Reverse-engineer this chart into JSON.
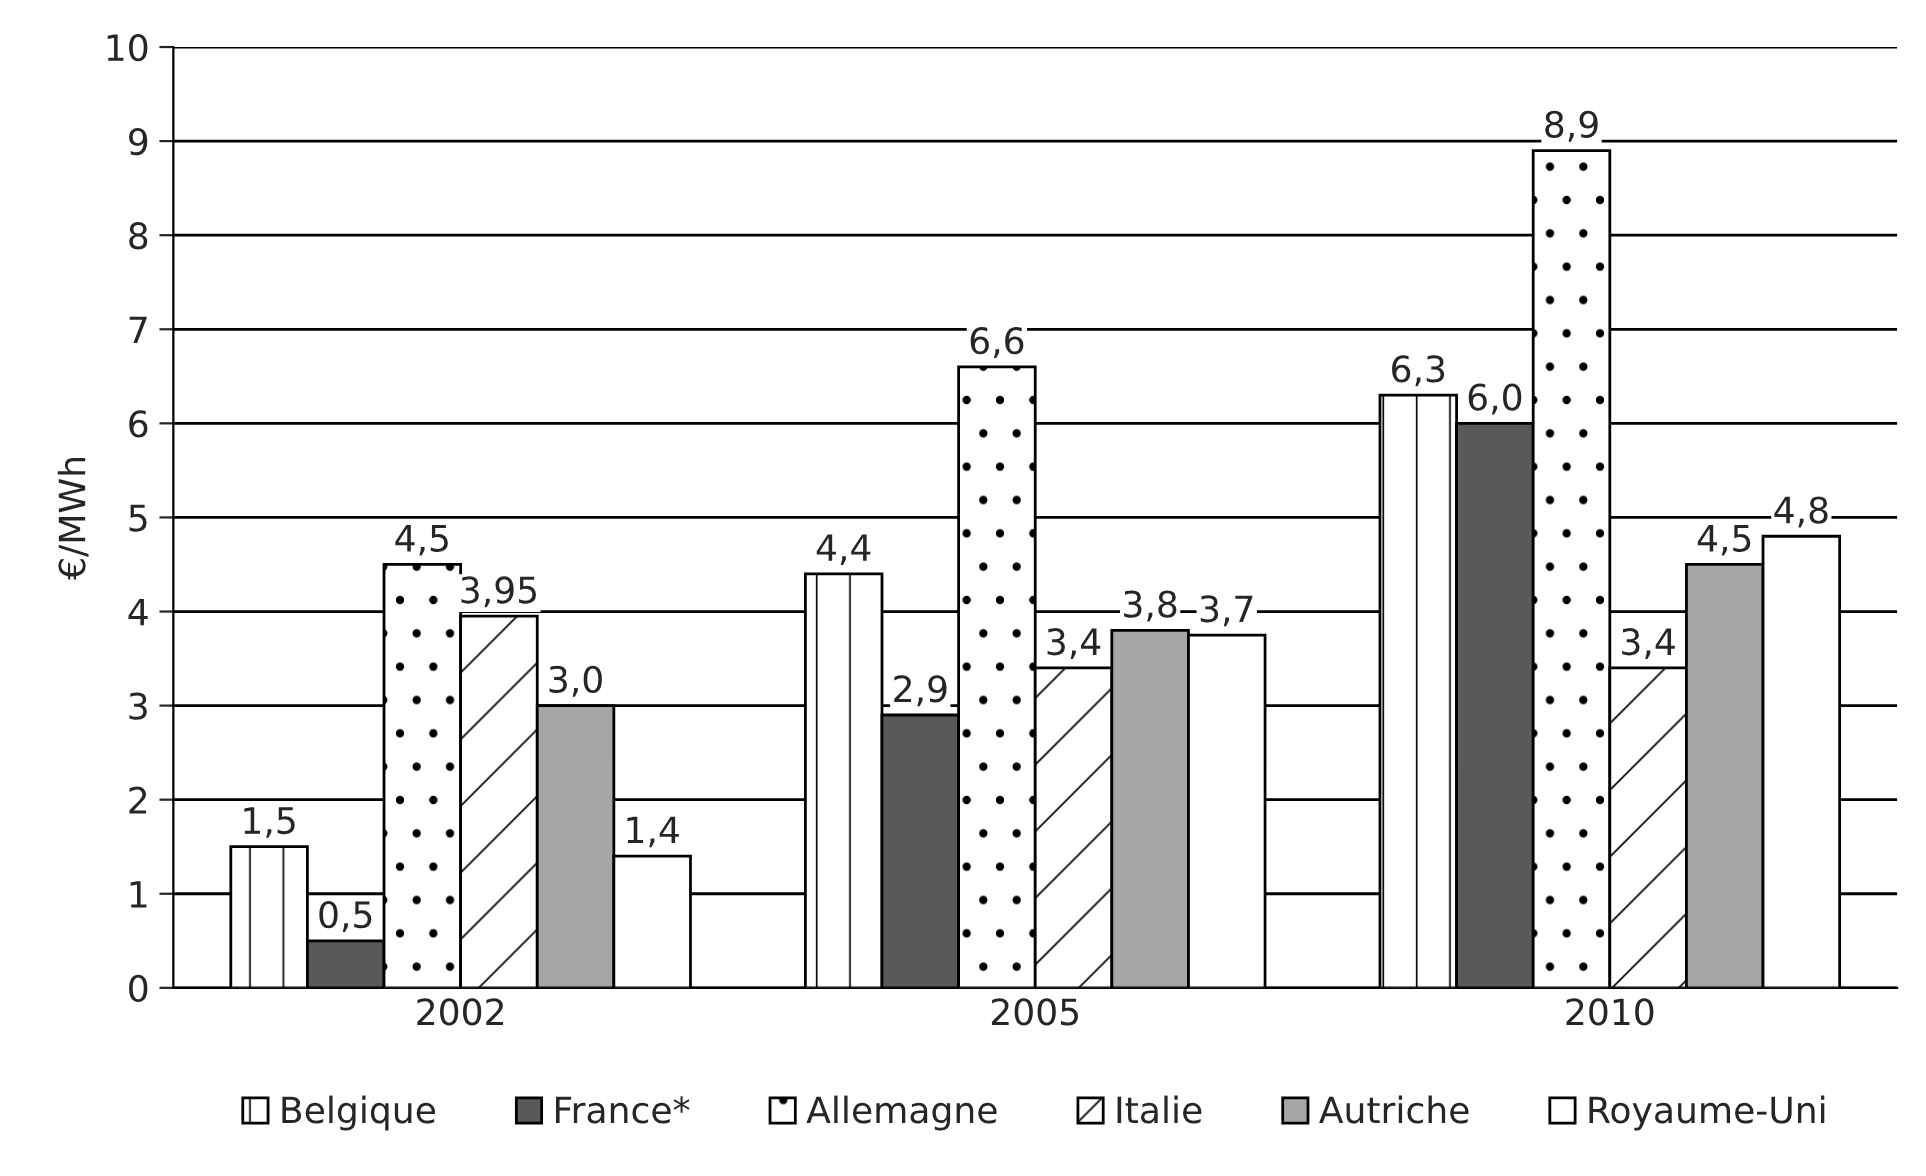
{
  "chart_data": {
    "type": "bar",
    "ylabel": "€/MWh",
    "categories": [
      "2002",
      "2005",
      "2010"
    ],
    "series": [
      {
        "name": "Belgique",
        "color": "#ffffff",
        "values": [
          1.5,
          4.4,
          6.3
        ],
        "value_labels": [
          "1,5",
          "4,4",
          "6,3"
        ]
      },
      {
        "name": "France*",
        "color": "#595959",
        "values": [
          0.5,
          2.9,
          6.0
        ],
        "value_labels": [
          "0,5",
          "2,9",
          "6,0"
        ]
      },
      {
        "name": "Allemagne",
        "color": "#ffffff",
        "values": [
          4.5,
          6.6,
          8.9
        ],
        "value_labels": [
          "4,5",
          "6,6",
          "8,9"
        ]
      },
      {
        "name": "Italie",
        "color": "#ffffff",
        "values": [
          3.95,
          3.4,
          3.4
        ],
        "value_labels": [
          "3,95",
          "3,4",
          "3,4"
        ]
      },
      {
        "name": "Autriche",
        "color": "#a6a6a6",
        "values": [
          3.0,
          3.8,
          4.5
        ],
        "value_labels": [
          "3,0",
          "3,8",
          "4,5"
        ]
      },
      {
        "name": "Royaume-Uni",
        "color": "#ffffff",
        "values": [
          1.4,
          3.75,
          4.8
        ],
        "value_labels": [
          "1,4",
          "3,7",
          "4,8"
        ]
      }
    ],
    "ylim": [
      0,
      10
    ],
    "yticks": [
      0,
      1,
      2,
      3,
      4,
      5,
      6,
      7,
      8,
      9,
      10
    ],
    "grid": "y",
    "legend": "bottom"
  }
}
